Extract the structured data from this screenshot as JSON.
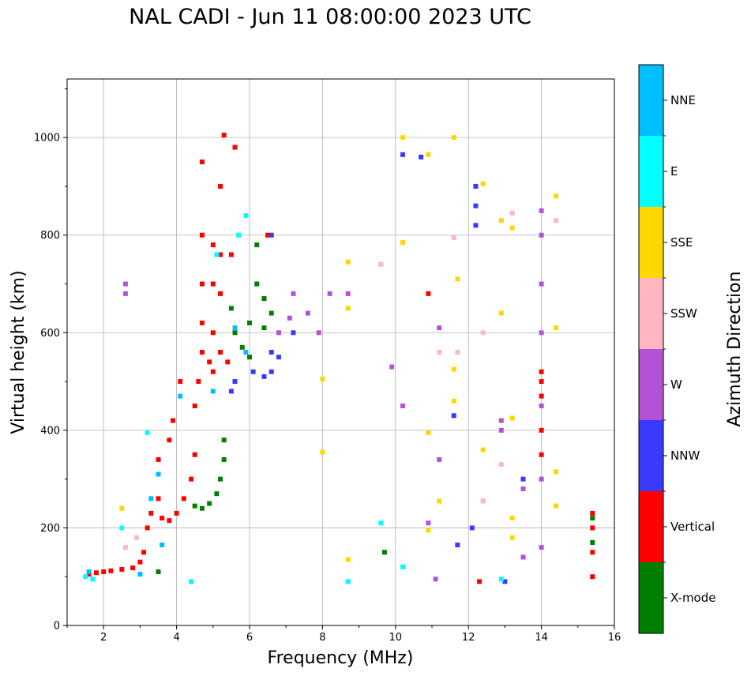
{
  "chart_data": {
    "type": "scatter",
    "title": "NAL CADI - Jun 11 08:00:00 2023 UTC",
    "xlabel": "Frequency (MHz)",
    "ylabel": "Virtual height (km)",
    "xlim": [
      1,
      16
    ],
    "ylim": [
      0,
      1120
    ],
    "xticks": [
      "2",
      "4",
      "6",
      "8",
      "10",
      "12",
      "14",
      "16"
    ],
    "yticks": [
      "0",
      "200",
      "400",
      "600",
      "800",
      "1000"
    ],
    "grid": true,
    "colorbar": {
      "label": "Azimuth Direction",
      "categories": [
        {
          "name": "X-mode",
          "color": "#008000"
        },
        {
          "name": "Vertical",
          "color": "#ff0000"
        },
        {
          "name": "NNW",
          "color": "#3a3aff"
        },
        {
          "name": "W",
          "color": "#b452d6"
        },
        {
          "name": "SSW",
          "color": "#ffb6c1"
        },
        {
          "name": "SSE",
          "color": "#ffd700"
        },
        {
          "name": "E",
          "color": "#00ffff"
        },
        {
          "name": "NNE",
          "color": "#00bfff"
        }
      ]
    },
    "series": [
      {
        "name": "Vertical",
        "points": [
          [
            1.6,
            105
          ],
          [
            1.8,
            108
          ],
          [
            2.0,
            110
          ],
          [
            2.2,
            112
          ],
          [
            2.5,
            115
          ],
          [
            2.8,
            118
          ],
          [
            3.0,
            130
          ],
          [
            3.1,
            150
          ],
          [
            3.2,
            200
          ],
          [
            3.3,
            230
          ],
          [
            3.5,
            260
          ],
          [
            3.5,
            340
          ],
          [
            3.6,
            220
          ],
          [
            3.8,
            215
          ],
          [
            4.0,
            230
          ],
          [
            4.2,
            260
          ],
          [
            4.4,
            300
          ],
          [
            4.5,
            350
          ],
          [
            4.5,
            450
          ],
          [
            4.6,
            500
          ],
          [
            4.7,
            560
          ],
          [
            4.7,
            620
          ],
          [
            4.7,
            700
          ],
          [
            4.7,
            800
          ],
          [
            4.7,
            950
          ],
          [
            4.9,
            540
          ],
          [
            5.0,
            520
          ],
          [
            5.0,
            600
          ],
          [
            5.0,
            700
          ],
          [
            5.0,
            780
          ],
          [
            5.2,
            560
          ],
          [
            5.2,
            680
          ],
          [
            5.2,
            760
          ],
          [
            5.2,
            900
          ],
          [
            5.3,
            1005
          ],
          [
            5.4,
            540
          ],
          [
            5.5,
            760
          ],
          [
            5.6,
            980
          ],
          [
            4.1,
            500
          ],
          [
            3.9,
            420
          ],
          [
            3.8,
            380
          ],
          [
            6.5,
            800
          ],
          [
            10.9,
            680
          ],
          [
            12.3,
            90
          ],
          [
            14.0,
            520
          ],
          [
            14.0,
            500
          ],
          [
            14.0,
            470
          ],
          [
            14.0,
            400
          ],
          [
            14.0,
            350
          ],
          [
            15.4,
            230
          ],
          [
            15.4,
            200
          ],
          [
            15.4,
            150
          ],
          [
            15.4,
            100
          ]
        ]
      },
      {
        "name": "X-mode",
        "points": [
          [
            3.5,
            110
          ],
          [
            4.5,
            245
          ],
          [
            4.7,
            240
          ],
          [
            4.9,
            250
          ],
          [
            5.1,
            270
          ],
          [
            5.2,
            300
          ],
          [
            5.3,
            340
          ],
          [
            5.3,
            380
          ],
          [
            5.5,
            650
          ],
          [
            5.6,
            600
          ],
          [
            5.8,
            570
          ],
          [
            6.0,
            550
          ],
          [
            6.0,
            620
          ],
          [
            6.2,
            700
          ],
          [
            6.2,
            780
          ],
          [
            6.4,
            610
          ],
          [
            6.4,
            670
          ],
          [
            6.6,
            640
          ],
          [
            9.7,
            150
          ],
          [
            15.4,
            220
          ],
          [
            15.4,
            170
          ]
        ]
      },
      {
        "name": "NNW",
        "points": [
          [
            5.5,
            480
          ],
          [
            5.6,
            500
          ],
          [
            6.1,
            520
          ],
          [
            6.4,
            510
          ],
          [
            6.6,
            520
          ],
          [
            6.6,
            560
          ],
          [
            6.8,
            550
          ],
          [
            6.6,
            800
          ],
          [
            7.2,
            600
          ],
          [
            10.2,
            965
          ],
          [
            10.7,
            960
          ],
          [
            11.6,
            430
          ],
          [
            11.7,
            165
          ],
          [
            12.1,
            200
          ],
          [
            12.2,
            820
          ],
          [
            12.2,
            860
          ],
          [
            12.2,
            900
          ],
          [
            13.0,
            90
          ],
          [
            13.5,
            300
          ]
        ]
      },
      {
        "name": "W",
        "points": [
          [
            2.6,
            680
          ],
          [
            2.6,
            700
          ],
          [
            6.8,
            600
          ],
          [
            7.1,
            630
          ],
          [
            7.2,
            680
          ],
          [
            7.6,
            640
          ],
          [
            7.9,
            600
          ],
          [
            8.2,
            680
          ],
          [
            8.7,
            680
          ],
          [
            9.9,
            530
          ],
          [
            10.2,
            450
          ],
          [
            10.9,
            210
          ],
          [
            11.1,
            95
          ],
          [
            11.2,
            340
          ],
          [
            11.2,
            610
          ],
          [
            12.9,
            400
          ],
          [
            12.9,
            420
          ],
          [
            13.5,
            280
          ],
          [
            13.5,
            140
          ],
          [
            14.0,
            160
          ],
          [
            14.0,
            300
          ],
          [
            14.0,
            450
          ],
          [
            14.0,
            600
          ],
          [
            14.0,
            700
          ],
          [
            14.0,
            800
          ],
          [
            14.0,
            850
          ]
        ]
      },
      {
        "name": "SSW",
        "points": [
          [
            2.6,
            160
          ],
          [
            2.9,
            180
          ],
          [
            9.6,
            740
          ],
          [
            11.6,
            795
          ],
          [
            11.2,
            560
          ],
          [
            11.7,
            560
          ],
          [
            12.4,
            255
          ],
          [
            12.4,
            600
          ],
          [
            12.9,
            330
          ],
          [
            13.2,
            845
          ],
          [
            14.4,
            830
          ]
        ]
      },
      {
        "name": "SSE",
        "points": [
          [
            2.5,
            240
          ],
          [
            8.0,
            355
          ],
          [
            8.0,
            505
          ],
          [
            8.7,
            135
          ],
          [
            8.7,
            650
          ],
          [
            8.7,
            745
          ],
          [
            10.2,
            1000
          ],
          [
            10.2,
            785
          ],
          [
            10.9,
            965
          ],
          [
            10.9,
            395
          ],
          [
            10.9,
            195
          ],
          [
            11.2,
            255
          ],
          [
            11.6,
            1000
          ],
          [
            11.6,
            525
          ],
          [
            11.6,
            460
          ],
          [
            11.7,
            710
          ],
          [
            12.4,
            360
          ],
          [
            12.4,
            905
          ],
          [
            12.9,
            830
          ],
          [
            12.9,
            640
          ],
          [
            13.2,
            815
          ],
          [
            13.2,
            425
          ],
          [
            13.2,
            220
          ],
          [
            13.2,
            180
          ],
          [
            14.4,
            880
          ],
          [
            14.4,
            610
          ],
          [
            14.4,
            315
          ],
          [
            14.4,
            245
          ]
        ]
      },
      {
        "name": "E",
        "points": [
          [
            1.5,
            100
          ],
          [
            1.7,
            95
          ],
          [
            2.5,
            200
          ],
          [
            3.2,
            395
          ],
          [
            4.4,
            90
          ],
          [
            5.1,
            760
          ],
          [
            5.7,
            800
          ],
          [
            5.9,
            840
          ],
          [
            8.7,
            90
          ],
          [
            9.6,
            210
          ],
          [
            10.2,
            120
          ],
          [
            12.9,
            95
          ]
        ]
      },
      {
        "name": "NNE",
        "points": [
          [
            1.6,
            110
          ],
          [
            3.0,
            105
          ],
          [
            3.3,
            260
          ],
          [
            3.5,
            310
          ],
          [
            3.6,
            165
          ],
          [
            4.1,
            470
          ],
          [
            5.0,
            480
          ],
          [
            5.6,
            610
          ],
          [
            5.9,
            560
          ]
        ]
      }
    ]
  }
}
